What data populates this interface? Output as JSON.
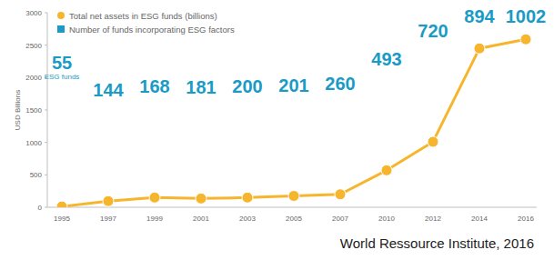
{
  "chart_data": {
    "type": "line",
    "y_label": "USD Billions",
    "categories": [
      "1995",
      "1997",
      "1999",
      "2001",
      "2003",
      "2005",
      "2007",
      "2010",
      "2012",
      "2014",
      "2016"
    ],
    "series": [
      {
        "name": "Total net assets in ESG funds (billions)",
        "color": "#f6b52c",
        "marker": "circle",
        "type": "line",
        "values": [
          12,
          95,
          150,
          135,
          150,
          175,
          200,
          570,
          1010,
          2450,
          2590
        ]
      },
      {
        "name": "Number of funds incorporating ESG factors",
        "color": "#1a9bc6",
        "marker": "square",
        "type": "label",
        "values": [
          55,
          144,
          168,
          181,
          200,
          201,
          260,
          493,
          720,
          894,
          1002
        ]
      }
    ],
    "annotations": [
      "ESG funds",
      "World Ressource Institute, 2016"
    ],
    "ylim": [
      0,
      3000
    ],
    "yticks": [
      0,
      500,
      1000,
      1500,
      2000,
      2500,
      3000
    ],
    "grid": false
  }
}
